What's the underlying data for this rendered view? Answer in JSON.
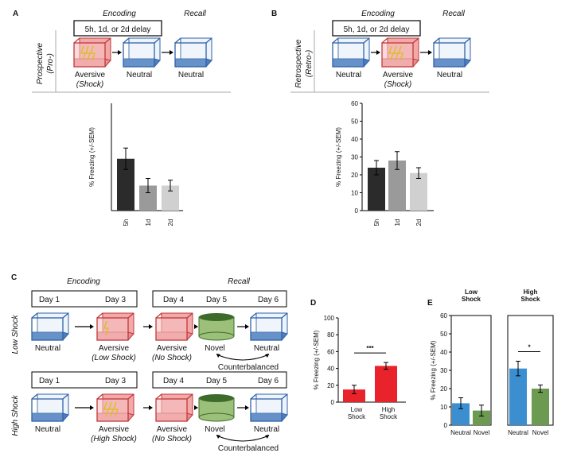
{
  "panels": {
    "A": {
      "letter": "A",
      "encoding": "Encoding",
      "recall": "Recall",
      "delay": "5h, 1d, or 2d delay",
      "condition": [
        "Prospective",
        "(Pro-)"
      ],
      "labels": [
        [
          "Aversive",
          "(Shock)"
        ],
        [
          "Neutral"
        ],
        [
          "Neutral"
        ]
      ]
    },
    "B": {
      "letter": "B",
      "encoding": "Encoding",
      "recall": "Recall",
      "delay": "5h, 1d, or 2d delay",
      "condition": [
        "Retrospective",
        "(Retro-)"
      ],
      "labels": [
        [
          "Neutral"
        ],
        [
          "Aversive",
          "(Shock)"
        ],
        [
          "Neutral"
        ]
      ]
    },
    "C": {
      "letter": "C",
      "encoding": "Encoding",
      "recall": "Recall",
      "rows": [
        {
          "name": "Low Shock",
          "days": [
            "Day 1",
            "Day 3",
            "Day 4",
            "Day 5",
            "Day 6"
          ],
          "labels": [
            [
              "Neutral"
            ],
            [
              "Aversive",
              "(Low Shock)"
            ],
            [
              "Aversive",
              "(No Shock)"
            ],
            [
              "Novel"
            ],
            [
              "Neutral"
            ]
          ],
          "note": "Counterbalanced"
        },
        {
          "name": "High Shock",
          "days": [
            "Day 1",
            "Day 3",
            "Day 4",
            "Day 5",
            "Day 6"
          ],
          "labels": [
            [
              "Neutral"
            ],
            [
              "Aversive",
              "(High Shock)"
            ],
            [
              "Aversive",
              "(No Shock)"
            ],
            [
              "Novel"
            ],
            [
              "Neutral"
            ]
          ],
          "note": "Counterbalanced"
        }
      ]
    },
    "D": {
      "letter": "D"
    },
    "E": {
      "letter": "E"
    }
  },
  "chart_data": [
    {
      "type": "bar",
      "y_label": "% Freezing (+/-SEM)",
      "categories": [
        "5h",
        "1d",
        "2d"
      ],
      "values": [
        29,
        14,
        14
      ],
      "errors": [
        6,
        4,
        3
      ],
      "colors": [
        "#2b2b2b",
        "#9a9a9a",
        "#d0d0d0"
      ],
      "ylim": [
        0,
        60
      ]
    },
    {
      "type": "bar",
      "y_label": "% Freezing (+/-SEM)",
      "categories": [
        "5h",
        "1d",
        "2d"
      ],
      "values": [
        24,
        28,
        21
      ],
      "errors": [
        4,
        5,
        3
      ],
      "colors": [
        "#2b2b2b",
        "#9a9a9a",
        "#d0d0d0"
      ],
      "ylim": [
        0,
        60
      ],
      "yticks": [
        0,
        10,
        20,
        30,
        40,
        50,
        60
      ]
    },
    {
      "type": "bar",
      "y_label": "% Freezing (+/-SEM)",
      "categories": [
        "Low Shock",
        "High Shock"
      ],
      "values": [
        15,
        43
      ],
      "errors": [
        5,
        4
      ],
      "colors": [
        "#e8232b",
        "#e8232b"
      ],
      "ylim": [
        0,
        100
      ],
      "yticks": [
        0,
        20,
        40,
        60,
        80,
        100
      ],
      "annotation": "***"
    },
    {
      "type": "bar",
      "title": "Low Shock",
      "y_label": "% Freezing (+/-SEM)",
      "categories": [
        "Neutral",
        "Novel"
      ],
      "values": [
        12,
        8
      ],
      "errors": [
        3,
        3
      ],
      "colors": [
        "#3b8fd1",
        "#6b9a50"
      ],
      "ylim": [
        0,
        60
      ],
      "yticks": [
        0,
        10,
        20,
        30,
        40,
        50,
        60
      ]
    },
    {
      "type": "bar",
      "title": "High Shock",
      "categories": [
        "Neutral",
        "Novel"
      ],
      "values": [
        31,
        20
      ],
      "errors": [
        4,
        2
      ],
      "colors": [
        "#3b8fd1",
        "#6b9a50"
      ],
      "ylim": [
        0,
        60
      ],
      "annotation": "*"
    }
  ]
}
